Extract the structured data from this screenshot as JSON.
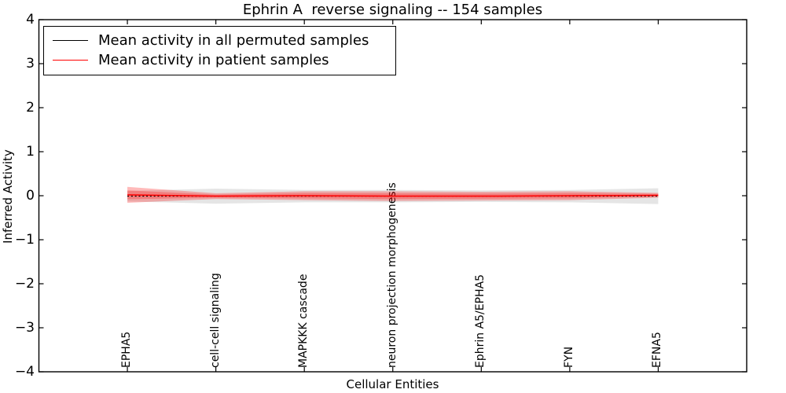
{
  "chart_data": {
    "type": "line",
    "title": "Ephrin A  reverse signaling -- 154 samples",
    "xlabel": "Cellular Entities",
    "ylabel": "Inferred Activity",
    "categories": [
      "EPHA5",
      "cell-cell signaling",
      "MAPKKK cascade",
      "neuron projection morphogenesis",
      "Ephrin A5/EPHA5",
      "FYN",
      "EFNA5"
    ],
    "ylim": [
      -4,
      4
    ],
    "ytick_values": [
      4,
      3,
      2,
      1,
      0,
      -1,
      -2,
      -3,
      -4
    ],
    "ytick_labels": [
      "4",
      "3",
      "2",
      "1",
      "0",
      "−1",
      "−2",
      "−3",
      "−4"
    ],
    "grid": false,
    "legend": {
      "position": "upper left",
      "items": [
        {
          "label": "Mean activity in all permuted samples",
          "color": "#000000"
        },
        {
          "label": "Mean activity in patient samples",
          "color": "#ff0000"
        }
      ]
    },
    "series": [
      {
        "name": "Mean activity in all permuted samples",
        "color": "#000000",
        "linestyle": "dotted",
        "mean": [
          -0.01,
          -0.01,
          -0.01,
          -0.01,
          -0.01,
          -0.01,
          -0.01
        ],
        "bands": [
          {
            "widths": [
              0.12,
              0.17,
              0.14,
              0.14,
              0.13,
              0.14,
              0.18
            ],
            "color": "#000000",
            "alpha": 0.1
          }
        ]
      },
      {
        "name": "Mean activity in patient samples",
        "color": "#ff0000",
        "linestyle": "solid",
        "mean": [
          0.02,
          -0.01,
          0.0,
          -0.01,
          -0.01,
          0.0,
          0.01
        ],
        "bands": [
          {
            "widths": [
              0.18,
              0.065,
              0.1,
              0.11,
              0.1,
              0.1,
              0.055
            ],
            "color": "#ff0000",
            "alpha": 0.27
          },
          {
            "widths": [
              0.1,
              0.035,
              0.06,
              0.065,
              0.06,
              0.06,
              0.03
            ],
            "color": "#ff0000",
            "alpha": 0.25
          }
        ]
      }
    ]
  },
  "layout_note": {
    "plot_frame_color": "#000000",
    "background": "#ffffff"
  }
}
